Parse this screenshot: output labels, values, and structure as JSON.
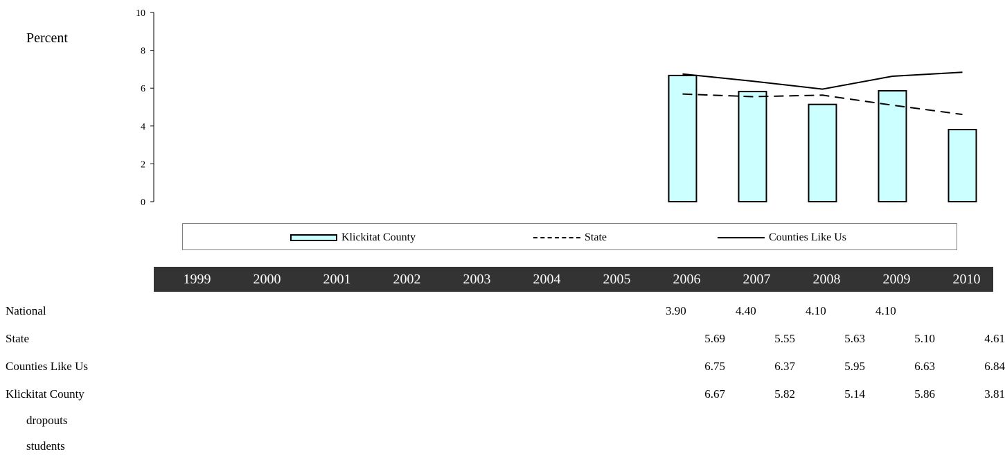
{
  "chart_data": {
    "type": "bar",
    "ylabel": "Percent",
    "ylim": [
      0,
      10
    ],
    "yticks": [
      0,
      2,
      4,
      6,
      8,
      10
    ],
    "categories": [
      "1999",
      "2000",
      "2001",
      "2002",
      "2003",
      "2004",
      "2005",
      "2006",
      "2007",
      "2008",
      "2009",
      "2010"
    ],
    "legend_placement": "below",
    "series": [
      {
        "name": "Klickitat County",
        "kind": "bar",
        "color": "#ccffff",
        "values": [
          null,
          null,
          null,
          null,
          null,
          null,
          null,
          6.67,
          5.82,
          5.14,
          5.86,
          3.81
        ]
      },
      {
        "name": "State",
        "kind": "line-dashed",
        "color": "#000000",
        "values": [
          null,
          null,
          null,
          null,
          null,
          null,
          null,
          5.69,
          5.55,
          5.63,
          5.1,
          4.61
        ]
      },
      {
        "name": "Counties Like Us",
        "kind": "line",
        "color": "#000000",
        "values": [
          null,
          null,
          null,
          null,
          null,
          null,
          null,
          6.75,
          6.37,
          5.95,
          6.63,
          6.84
        ]
      }
    ]
  },
  "table": {
    "rows": [
      {
        "label": "National",
        "align": "left",
        "values": [
          "",
          "",
          "",
          "",
          "",
          "",
          "",
          "3.90",
          "4.40",
          "4.10",
          "4.10",
          ""
        ]
      },
      {
        "label": "State",
        "align": "right",
        "values": [
          "",
          "",
          "",
          "",
          "",
          "",
          "",
          "5.69",
          "5.55",
          "5.63",
          "5.10",
          "4.61"
        ]
      },
      {
        "label": "Counties Like Us",
        "align": "right",
        "values": [
          "",
          "",
          "",
          "",
          "",
          "",
          "",
          "6.75",
          "6.37",
          "5.95",
          "6.63",
          "6.84"
        ]
      },
      {
        "label": "Klickitat County",
        "align": "right",
        "values": [
          "",
          "",
          "",
          "",
          "",
          "",
          "",
          "6.67",
          "5.82",
          "5.14",
          "5.86",
          "3.81"
        ]
      }
    ],
    "sub_labels": [
      "dropouts",
      "students"
    ]
  }
}
